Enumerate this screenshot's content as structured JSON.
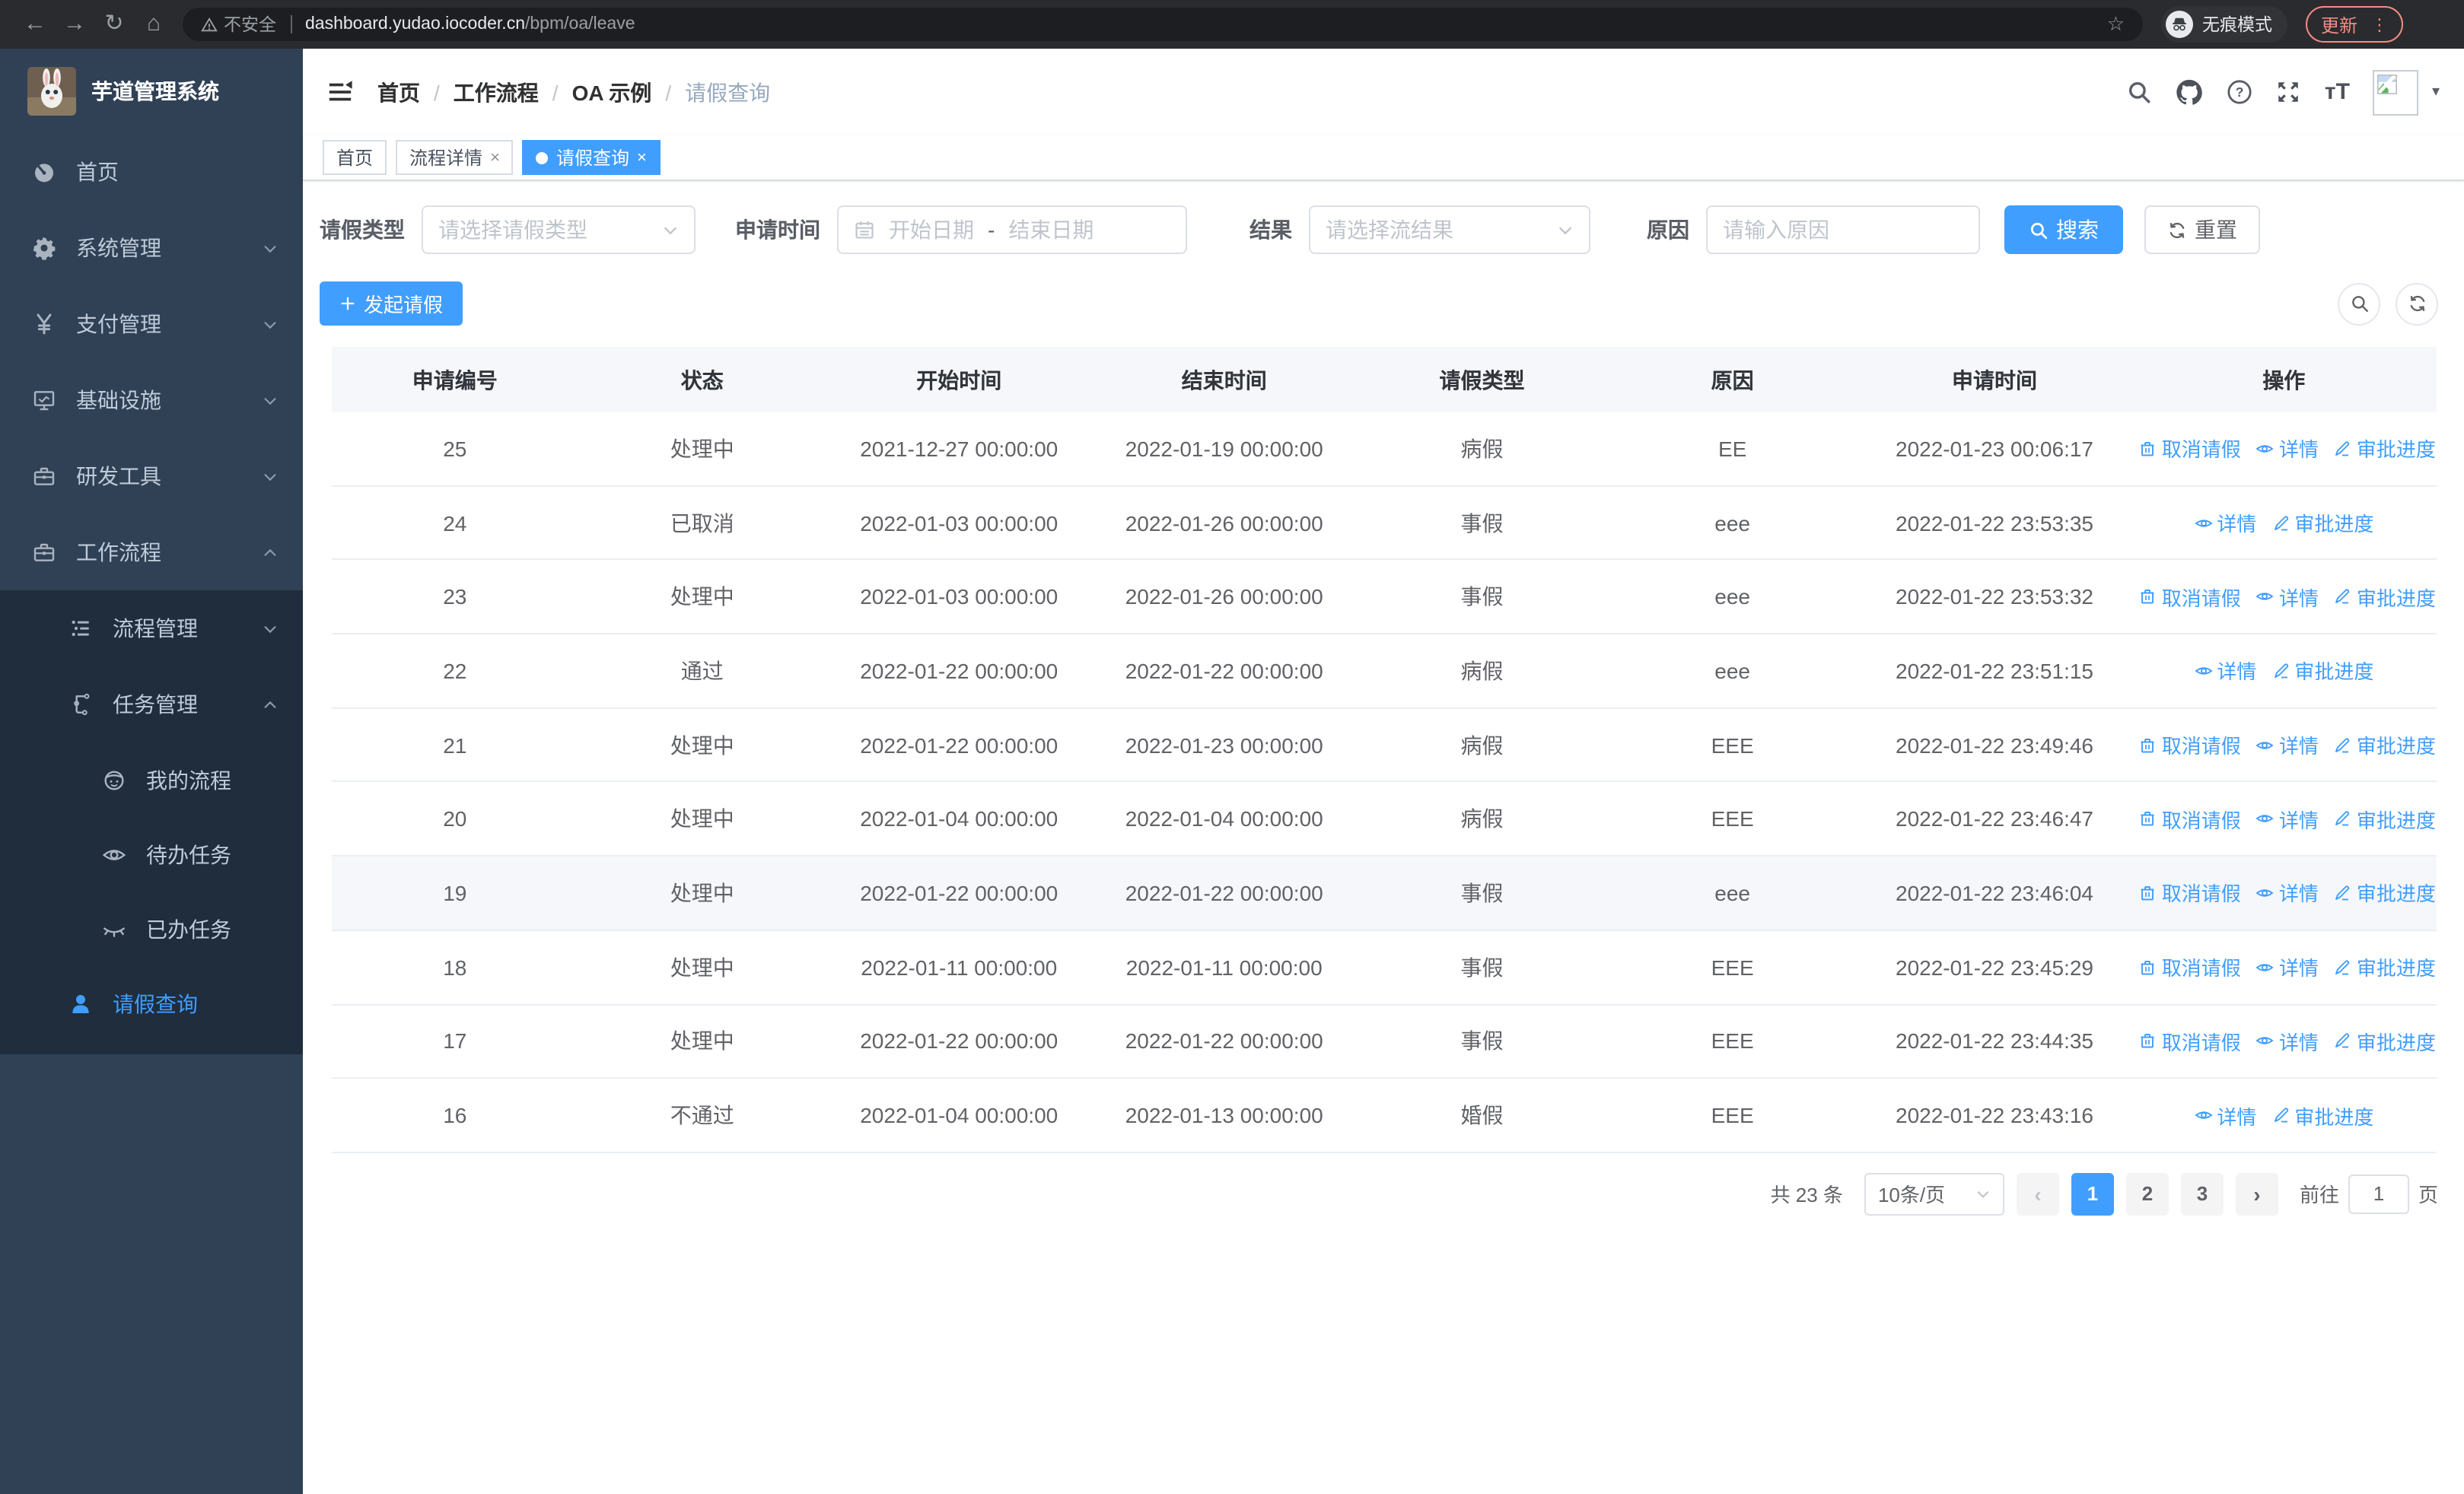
{
  "browser": {
    "security_label": "不安全",
    "url_domain": "dashboard.yudao.iocoder.cn",
    "url_path": "/bpm/oa/leave",
    "incognito_label": "无痕模式",
    "update_label": "更新"
  },
  "sidebar": {
    "title": "芋道管理系统",
    "items": [
      {
        "label": "首页",
        "icon": "dashboard-icon",
        "chevron": null,
        "active": false
      },
      {
        "label": "系统管理",
        "icon": "gear-icon",
        "chevron": "down",
        "active": false
      },
      {
        "label": "支付管理",
        "icon": "yen-icon",
        "chevron": "down",
        "active": false
      },
      {
        "label": "基础设施",
        "icon": "monitor-icon",
        "chevron": "down",
        "active": false
      },
      {
        "label": "研发工具",
        "icon": "toolbox-icon",
        "chevron": "down",
        "active": false
      },
      {
        "label": "工作流程",
        "icon": "briefcase-icon",
        "chevron": "up",
        "active": false
      }
    ],
    "workflow_children": [
      {
        "label": "流程管理",
        "icon": "list-icon",
        "chevron": "down",
        "level": 2,
        "active": false
      },
      {
        "label": "任务管理",
        "icon": "tree-icon",
        "chevron": "up",
        "level": 2,
        "active": false
      },
      {
        "label": "我的流程",
        "icon": "face-icon",
        "chevron": null,
        "level": 3,
        "active": false
      },
      {
        "label": "待办任务",
        "icon": "eye-icon",
        "chevron": null,
        "level": 3,
        "active": false
      },
      {
        "label": "已办任务",
        "icon": "eye-closed-icon",
        "chevron": null,
        "level": 3,
        "active": false
      },
      {
        "label": "请假查询",
        "icon": "user-icon",
        "chevron": null,
        "level": 2,
        "active": true
      }
    ]
  },
  "header": {
    "breadcrumb": [
      "首页",
      "工作流程",
      "OA 示例",
      "请假查询"
    ],
    "separator": "/"
  },
  "tags": [
    {
      "label": "首页",
      "closable": false,
      "active": false
    },
    {
      "label": "流程详情",
      "closable": true,
      "active": false
    },
    {
      "label": "请假查询",
      "closable": true,
      "active": true
    }
  ],
  "filters": {
    "type_label": "请假类型",
    "type_placeholder": "请选择请假类型",
    "time_label": "申请时间",
    "start_placeholder": "开始日期",
    "range_separator": "-",
    "end_placeholder": "结束日期",
    "result_label": "结果",
    "result_placeholder": "请选择流结果",
    "reason_label": "原因",
    "reason_placeholder": "请输入原因",
    "search_label": "搜索",
    "reset_label": "重置"
  },
  "toolbar": {
    "create_label": "发起请假"
  },
  "table": {
    "columns": [
      "申请编号",
      "状态",
      "开始时间",
      "结束时间",
      "请假类型",
      "原因",
      "申请时间",
      "操作"
    ],
    "action_labels": {
      "cancel": "取消请假",
      "detail": "详情",
      "progress": "审批进度"
    },
    "rows": [
      {
        "id": "25",
        "status": "处理中",
        "start": "2021-12-27 00:00:00",
        "end": "2022-01-19 00:00:00",
        "type": "病假",
        "reason": "EE",
        "applied": "2022-01-23 00:06:17",
        "actions": [
          "cancel",
          "detail",
          "progress"
        ],
        "highlight": false
      },
      {
        "id": "24",
        "status": "已取消",
        "start": "2022-01-03 00:00:00",
        "end": "2022-01-26 00:00:00",
        "type": "事假",
        "reason": "eee",
        "applied": "2022-01-22 23:53:35",
        "actions": [
          "detail",
          "progress"
        ],
        "highlight": false
      },
      {
        "id": "23",
        "status": "处理中",
        "start": "2022-01-03 00:00:00",
        "end": "2022-01-26 00:00:00",
        "type": "事假",
        "reason": "eee",
        "applied": "2022-01-22 23:53:32",
        "actions": [
          "cancel",
          "detail",
          "progress"
        ],
        "highlight": false
      },
      {
        "id": "22",
        "status": "通过",
        "start": "2022-01-22 00:00:00",
        "end": "2022-01-22 00:00:00",
        "type": "病假",
        "reason": "eee",
        "applied": "2022-01-22 23:51:15",
        "actions": [
          "detail",
          "progress"
        ],
        "highlight": false
      },
      {
        "id": "21",
        "status": "处理中",
        "start": "2022-01-22 00:00:00",
        "end": "2022-01-23 00:00:00",
        "type": "病假",
        "reason": "EEE",
        "applied": "2022-01-22 23:49:46",
        "actions": [
          "cancel",
          "detail",
          "progress"
        ],
        "highlight": false
      },
      {
        "id": "20",
        "status": "处理中",
        "start": "2022-01-04 00:00:00",
        "end": "2022-01-04 00:00:00",
        "type": "病假",
        "reason": "EEE",
        "applied": "2022-01-22 23:46:47",
        "actions": [
          "cancel",
          "detail",
          "progress"
        ],
        "highlight": false
      },
      {
        "id": "19",
        "status": "处理中",
        "start": "2022-01-22 00:00:00",
        "end": "2022-01-22 00:00:00",
        "type": "事假",
        "reason": "eee",
        "applied": "2022-01-22 23:46:04",
        "actions": [
          "cancel",
          "detail",
          "progress"
        ],
        "highlight": true
      },
      {
        "id": "18",
        "status": "处理中",
        "start": "2022-01-11 00:00:00",
        "end": "2022-01-11 00:00:00",
        "type": "事假",
        "reason": "EEE",
        "applied": "2022-01-22 23:45:29",
        "actions": [
          "cancel",
          "detail",
          "progress"
        ],
        "highlight": false
      },
      {
        "id": "17",
        "status": "处理中",
        "start": "2022-01-22 00:00:00",
        "end": "2022-01-22 00:00:00",
        "type": "事假",
        "reason": "EEE",
        "applied": "2022-01-22 23:44:35",
        "actions": [
          "cancel",
          "detail",
          "progress"
        ],
        "highlight": false
      },
      {
        "id": "16",
        "status": "不通过",
        "start": "2022-01-04 00:00:00",
        "end": "2022-01-13 00:00:00",
        "type": "婚假",
        "reason": "EEE",
        "applied": "2022-01-22 23:43:16",
        "actions": [
          "detail",
          "progress"
        ],
        "highlight": false
      }
    ]
  },
  "pagination": {
    "total_label": "共 23 条",
    "page_size": "10条/页",
    "pages": [
      "1",
      "2",
      "3"
    ],
    "active_page": "1",
    "goto_label": "前往",
    "goto_value": "1",
    "goto_suffix": "页"
  },
  "colors": {
    "accent": "#409eff",
    "sidebar": "#304156",
    "submenu": "#1f2d3d",
    "update": "#f28b82"
  }
}
